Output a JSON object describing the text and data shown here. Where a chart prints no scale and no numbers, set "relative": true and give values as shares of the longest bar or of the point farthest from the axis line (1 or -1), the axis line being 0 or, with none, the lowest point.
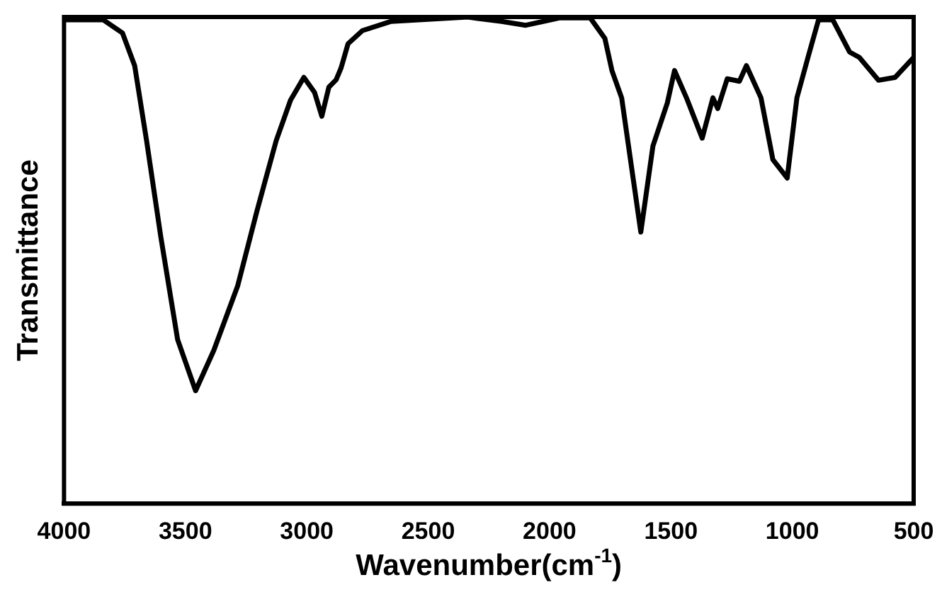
{
  "chart_data": {
    "type": "line",
    "xlabel": "Wavenumber(cm$^{-1}$)",
    "ylabel": "Transmittance",
    "relative": true,
    "xlim": [
      4000,
      500
    ],
    "xticks": [
      4000,
      3500,
      3000,
      2500,
      2000,
      1500,
      1000,
      500
    ],
    "grid": false,
    "legend": false,
    "marker": "none",
    "line_style": "solid",
    "series": [
      {
        "color": "#000000",
        "x": [
          4000,
          3838,
          3759,
          3709,
          3660,
          3601,
          3532,
          3458,
          3383,
          3285,
          3205,
          3126,
          3067,
          3012,
          2968,
          2938,
          2909,
          2879,
          2859,
          2830,
          2771,
          2652,
          2336,
          2296,
          2197,
          2098,
          1960,
          1832,
          1772,
          1743,
          1703,
          1624,
          1574,
          1515,
          1485,
          1436,
          1371,
          1327,
          1307,
          1268,
          1218,
          1189,
          1129,
          1080,
          1021,
          981,
          932,
          892,
          833,
          764,
          724,
          645,
          576,
          500
        ],
        "values": [
          0.994,
          0.994,
          0.967,
          0.9,
          0.746,
          0.547,
          0.337,
          0.232,
          0.315,
          0.447,
          0.602,
          0.746,
          0.829,
          0.876,
          0.845,
          0.796,
          0.856,
          0.871,
          0.895,
          0.945,
          0.972,
          0.991,
          1,
          0.997,
          0.991,
          0.983,
          0.998,
          0.998,
          0.956,
          0.89,
          0.834,
          0.558,
          0.735,
          0.823,
          0.89,
          0.834,
          0.751,
          0.834,
          0.812,
          0.873,
          0.868,
          0.9,
          0.834,
          0.707,
          0.669,
          0.834,
          0.923,
          0.994,
          0.994,
          0.928,
          0.917,
          0.87,
          0.876,
          0.917
        ]
      }
    ]
  }
}
